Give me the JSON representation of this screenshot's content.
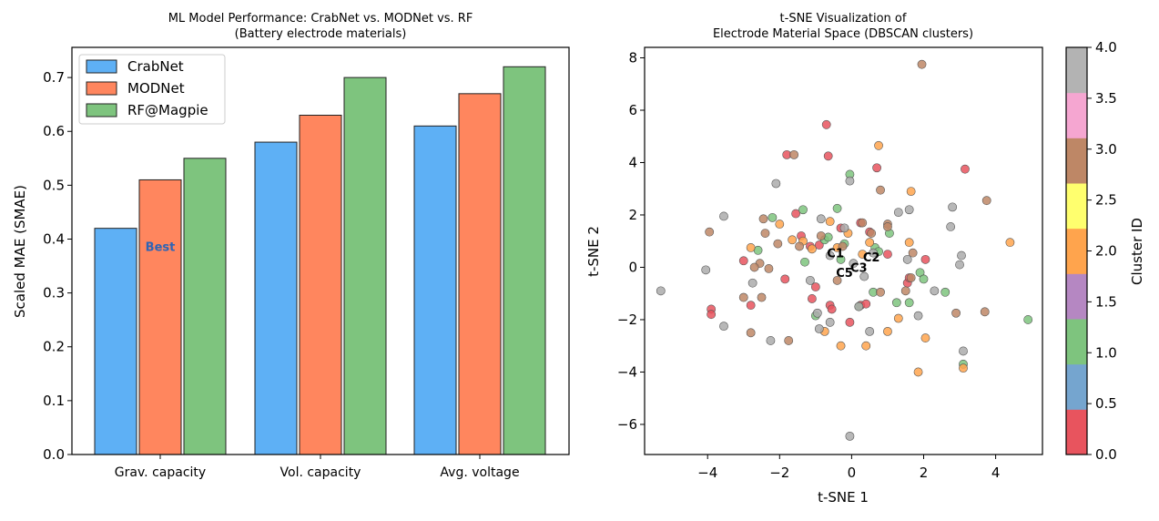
{
  "chart_data": [
    {
      "type": "bar",
      "title": "ML Model Performance: CrabNet vs. MODNet vs. RF",
      "subtitle": "(Battery electrode materials)",
      "xlabel": "",
      "ylabel": "Scaled MAE (SMAE)",
      "ylim": [
        0,
        0.756
      ],
      "yticks": [
        "0.0",
        "0.1",
        "0.2",
        "0.3",
        "0.4",
        "0.5",
        "0.6",
        "0.7"
      ],
      "categories": [
        "Grav. capacity",
        "Vol. capacity",
        "Avg. voltage"
      ],
      "series": [
        {
          "name": "CrabNet",
          "color": "#5eb0f5",
          "values": [
            0.42,
            0.58,
            0.61
          ]
        },
        {
          "name": "MODNet",
          "color": "#ff865e",
          "values": [
            0.51,
            0.63,
            0.67
          ]
        },
        {
          "name": "RF@Magpie",
          "color": "#7ec47e",
          "values": [
            0.55,
            0.7,
            0.72
          ]
        }
      ],
      "annotations": [
        {
          "text": "Best",
          "category": "Grav. capacity",
          "series": "MODNet",
          "y": 0.385,
          "color": "#2e64b5"
        }
      ],
      "legend_position": "top-left",
      "grid": false
    },
    {
      "type": "scatter",
      "title": "t-SNE Visualization of",
      "subtitle": "Electrode Material Space (DBSCAN clusters)",
      "xlabel": "t-SNE 1",
      "ylabel": "t-SNE 2",
      "xlim": [
        -5.75,
        5.3
      ],
      "ylim": [
        -7.15,
        8.4
      ],
      "xticks": [
        -4,
        -2,
        0,
        2,
        4
      ],
      "yticks": [
        -6,
        -4,
        -2,
        0,
        2,
        4,
        6,
        8
      ],
      "colorbar": {
        "label": "Cluster ID",
        "range": [
          0,
          4
        ],
        "ticks": [
          "0.0",
          "0.5",
          "1.0",
          "1.5",
          "2.0",
          "2.5",
          "3.0",
          "3.5",
          "4.0"
        ],
        "colors": [
          "#e8545e",
          "#75a5cf",
          "#7ec47e",
          "#b587c2",
          "#ffa44d",
          "#ffff6e",
          "#be8766",
          "#f5a6d1",
          "#b3b3b3"
        ]
      },
      "cluster_colors": [
        "#e8545e",
        "#7ec47e",
        "#ffa44d",
        "#be8766",
        "#ababab"
      ],
      "cluster_labels": [
        {
          "text": "C1",
          "x": -0.45,
          "y": 0.55
        },
        {
          "text": "C2",
          "x": 0.55,
          "y": 0.4
        },
        {
          "text": "C3",
          "x": 0.2,
          "y": 0.0
        },
        {
          "text": "C5",
          "x": -0.2,
          "y": -0.2
        }
      ],
      "points": [
        [
          -0.7,
          5.45,
          0
        ],
        [
          -1.8,
          4.3,
          0
        ],
        [
          -0.65,
          4.25,
          0
        ],
        [
          3.15,
          3.75,
          0
        ],
        [
          0.7,
          3.8,
          0
        ],
        [
          -1.55,
          2.05,
          0
        ],
        [
          -0.3,
          1.5,
          0
        ],
        [
          0.5,
          1.35,
          0
        ],
        [
          0.25,
          1.7,
          0
        ],
        [
          1.0,
          0.5,
          0
        ],
        [
          2.05,
          0.3,
          0
        ],
        [
          1.55,
          -0.6,
          0
        ],
        [
          -3.9,
          -1.6,
          0
        ],
        [
          -3.9,
          -1.8,
          0
        ],
        [
          -3.0,
          0.25,
          0
        ],
        [
          -2.8,
          -1.45,
          0
        ],
        [
          -1.85,
          -0.45,
          0
        ],
        [
          -1.1,
          -1.2,
          0
        ],
        [
          -0.6,
          -1.45,
          0
        ],
        [
          0.25,
          -1.45,
          0
        ],
        [
          -0.05,
          -2.1,
          0
        ],
        [
          -0.55,
          -1.6,
          0
        ],
        [
          0.4,
          -1.4,
          0
        ],
        [
          -1.0,
          -0.75,
          0
        ],
        [
          -1.15,
          0.8,
          0
        ],
        [
          -0.9,
          0.85,
          0
        ],
        [
          1.6,
          -0.4,
          0
        ],
        [
          -1.4,
          1.2,
          0
        ],
        [
          -0.05,
          3.55,
          1
        ],
        [
          -1.35,
          2.2,
          1
        ],
        [
          -0.4,
          2.25,
          1
        ],
        [
          -2.2,
          1.9,
          1
        ],
        [
          -0.75,
          1.05,
          1
        ],
        [
          -0.65,
          1.15,
          1
        ],
        [
          -0.2,
          0.9,
          1
        ],
        [
          0.65,
          0.75,
          1
        ],
        [
          0.75,
          0.6,
          1
        ],
        [
          1.05,
          1.3,
          1
        ],
        [
          -1.3,
          0.2,
          1
        ],
        [
          0.6,
          -0.95,
          1
        ],
        [
          1.25,
          -1.35,
          1
        ],
        [
          1.6,
          -1.35,
          1
        ],
        [
          1.9,
          -0.2,
          1
        ],
        [
          2.0,
          -0.45,
          1
        ],
        [
          2.6,
          -0.95,
          1
        ],
        [
          3.1,
          -3.7,
          1
        ],
        [
          4.9,
          -2.0,
          1
        ],
        [
          -2.6,
          0.65,
          1
        ],
        [
          0.2,
          -1.5,
          1
        ],
        [
          -1.0,
          -1.85,
          1
        ],
        [
          -0.3,
          0.3,
          1
        ],
        [
          0.75,
          4.65,
          2
        ],
        [
          1.65,
          2.9,
          2
        ],
        [
          -2.0,
          1.65,
          2
        ],
        [
          -1.65,
          1.05,
          2
        ],
        [
          -1.35,
          1.0,
          2
        ],
        [
          -0.6,
          1.75,
          2
        ],
        [
          -0.4,
          0.75,
          2
        ],
        [
          0.5,
          0.95,
          2
        ],
        [
          -2.8,
          0.75,
          2
        ],
        [
          -1.1,
          0.7,
          2
        ],
        [
          -0.75,
          -2.45,
          2
        ],
        [
          -0.3,
          -3.0,
          2
        ],
        [
          0.4,
          -3.0,
          2
        ],
        [
          1.0,
          -2.45,
          2
        ],
        [
          1.3,
          -1.95,
          2
        ],
        [
          2.05,
          -2.7,
          2
        ],
        [
          1.85,
          -4.0,
          2
        ],
        [
          3.1,
          -3.85,
          2
        ],
        [
          4.4,
          0.95,
          2
        ],
        [
          1.6,
          0.95,
          2
        ],
        [
          -0.1,
          1.3,
          2
        ],
        [
          0.3,
          0.5,
          2
        ],
        [
          1.95,
          7.75,
          3
        ],
        [
          -1.6,
          4.3,
          3
        ],
        [
          0.8,
          2.95,
          3
        ],
        [
          -2.45,
          1.85,
          3
        ],
        [
          -2.4,
          1.3,
          3
        ],
        [
          -2.05,
          0.9,
          3
        ],
        [
          -1.45,
          0.8,
          3
        ],
        [
          -0.85,
          1.2,
          3
        ],
        [
          -0.25,
          0.8,
          3
        ],
        [
          0.3,
          1.7,
          3
        ],
        [
          1.0,
          1.65,
          3
        ],
        [
          1.0,
          1.55,
          3
        ],
        [
          0.55,
          1.3,
          3
        ],
        [
          3.75,
          2.55,
          3
        ],
        [
          -3.95,
          1.35,
          3
        ],
        [
          -2.55,
          0.15,
          3
        ],
        [
          -1.75,
          -2.8,
          3
        ],
        [
          -2.8,
          -2.5,
          3
        ],
        [
          -3.0,
          -1.15,
          3
        ],
        [
          -2.5,
          -1.15,
          3
        ],
        [
          -2.3,
          -0.05,
          3
        ],
        [
          0.8,
          -0.95,
          3
        ],
        [
          1.5,
          -0.9,
          3
        ],
        [
          1.65,
          -0.4,
          3
        ],
        [
          1.7,
          0.55,
          3
        ],
        [
          2.9,
          -1.75,
          3
        ],
        [
          3.7,
          -1.7,
          3
        ],
        [
          -2.7,
          0.0,
          3
        ],
        [
          -0.4,
          -0.5,
          3
        ],
        [
          -2.1,
          3.2,
          4
        ],
        [
          -0.05,
          3.3,
          4
        ],
        [
          -0.85,
          1.85,
          4
        ],
        [
          -0.2,
          1.5,
          4
        ],
        [
          -3.55,
          1.95,
          4
        ],
        [
          -4.05,
          -0.1,
          4
        ],
        [
          -5.3,
          -0.9,
          4
        ],
        [
          -3.55,
          -2.25,
          4
        ],
        [
          -2.25,
          -2.8,
          4
        ],
        [
          -0.6,
          -2.1,
          4
        ],
        [
          -0.9,
          -2.35,
          4
        ],
        [
          -0.05,
          -6.45,
          4
        ],
        [
          0.5,
          -2.45,
          4
        ],
        [
          0.35,
          -0.35,
          4
        ],
        [
          -0.6,
          0.45,
          4
        ],
        [
          0.6,
          0.55,
          4
        ],
        [
          1.3,
          2.1,
          4
        ],
        [
          1.6,
          2.2,
          4
        ],
        [
          1.55,
          0.3,
          4
        ],
        [
          1.85,
          -1.85,
          4
        ],
        [
          2.3,
          -0.9,
          4
        ],
        [
          2.75,
          1.55,
          4
        ],
        [
          2.8,
          2.3,
          4
        ],
        [
          3.0,
          0.1,
          4
        ],
        [
          3.05,
          0.45,
          4
        ],
        [
          3.1,
          -3.2,
          4
        ],
        [
          -2.75,
          -0.6,
          4
        ],
        [
          -1.15,
          -0.5,
          4
        ],
        [
          -0.95,
          -1.75,
          4
        ],
        [
          0.2,
          -1.5,
          4
        ],
        [
          0.05,
          0.15,
          4
        ]
      ]
    }
  ]
}
